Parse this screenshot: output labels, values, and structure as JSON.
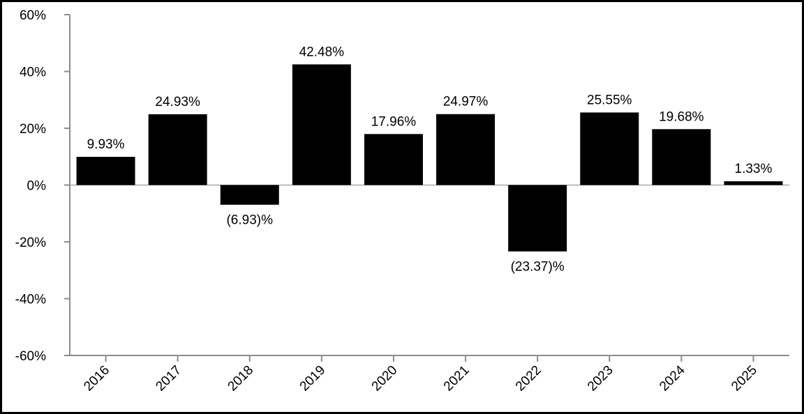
{
  "chart_data": {
    "type": "bar",
    "categories": [
      "2016",
      "2017",
      "2018",
      "2019",
      "2020",
      "2021",
      "2022",
      "2023",
      "2024",
      "2025"
    ],
    "values": [
      9.93,
      24.93,
      -6.93,
      42.48,
      17.96,
      24.97,
      -23.37,
      25.55,
      19.68,
      1.33
    ],
    "data_labels": [
      "9.93%",
      "24.93%",
      "(6.93)%",
      "42.48%",
      "17.96%",
      "24.97%",
      "(23.37)%",
      "25.55%",
      "19.68%",
      "1.33%"
    ],
    "y_ticks": [
      60,
      40,
      20,
      0,
      -20,
      -40,
      -60
    ],
    "y_tick_labels": [
      "60%",
      "40%",
      "20%",
      "0%",
      "-20%",
      "-40%",
      "-60%"
    ],
    "ylim": [
      -60,
      60
    ],
    "title": "",
    "xlabel": "",
    "ylabel": "",
    "grid": false,
    "legend": "none",
    "colors": {
      "bar": "#000000",
      "axis": "#8c8c8c",
      "text": "#000000",
      "border": "#000000"
    }
  }
}
